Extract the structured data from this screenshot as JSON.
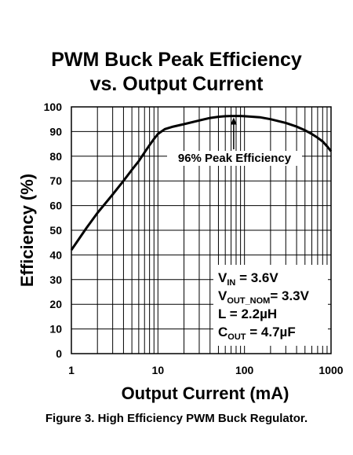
{
  "chart_data": {
    "type": "line",
    "title": "PWM Buck Peak Efficiency",
    "subtitle": "vs. Output Current",
    "xlabel": "Output Current (mA)",
    "ylabel": "Efficiency (%)",
    "x_scale": "log",
    "xlim": [
      1,
      1000
    ],
    "ylim": [
      0,
      100
    ],
    "x_ticks": [
      "1",
      "10",
      "100",
      "1000"
    ],
    "y_ticks": [
      "0",
      "10",
      "20",
      "30",
      "40",
      "50",
      "60",
      "70",
      "80",
      "90",
      "100"
    ],
    "grid": true,
    "series": [
      {
        "x": [
          1,
          1.5,
          2,
          3,
          4,
          5,
          6,
          7,
          8,
          9,
          10,
          12,
          15,
          20,
          30,
          40,
          50,
          60,
          70,
          80,
          90,
          100,
          150,
          200,
          300,
          400,
          500,
          600,
          700,
          800,
          900,
          1000
        ],
        "y": [
          42,
          51,
          57,
          64.5,
          70,
          74.5,
          78,
          81.5,
          84.5,
          87,
          89,
          91,
          92,
          93,
          94.5,
          95.5,
          96,
          96.2,
          96.3,
          96.3,
          96.3,
          96.2,
          95.8,
          95,
          93.5,
          92,
          90.5,
          89,
          87.5,
          86,
          84,
          82
        ]
      }
    ],
    "annotations": [
      {
        "text": "96% Peak Efficiency",
        "x": 75,
        "y": 96
      }
    ],
    "conditions": [
      {
        "sym": "V",
        "sub": "IN",
        "rest": " = 3.6V"
      },
      {
        "sym": "V",
        "sub": "OUT_NOM",
        "rest": "= 3.3V"
      },
      {
        "sym": "",
        "sub": "",
        "rest": "L = 2.2µH"
      },
      {
        "sym": "C",
        "sub": "OUT",
        "rest": " = 4.7µF"
      }
    ]
  },
  "caption": "Figure 3.  High Efficiency PWM Buck Regulator."
}
